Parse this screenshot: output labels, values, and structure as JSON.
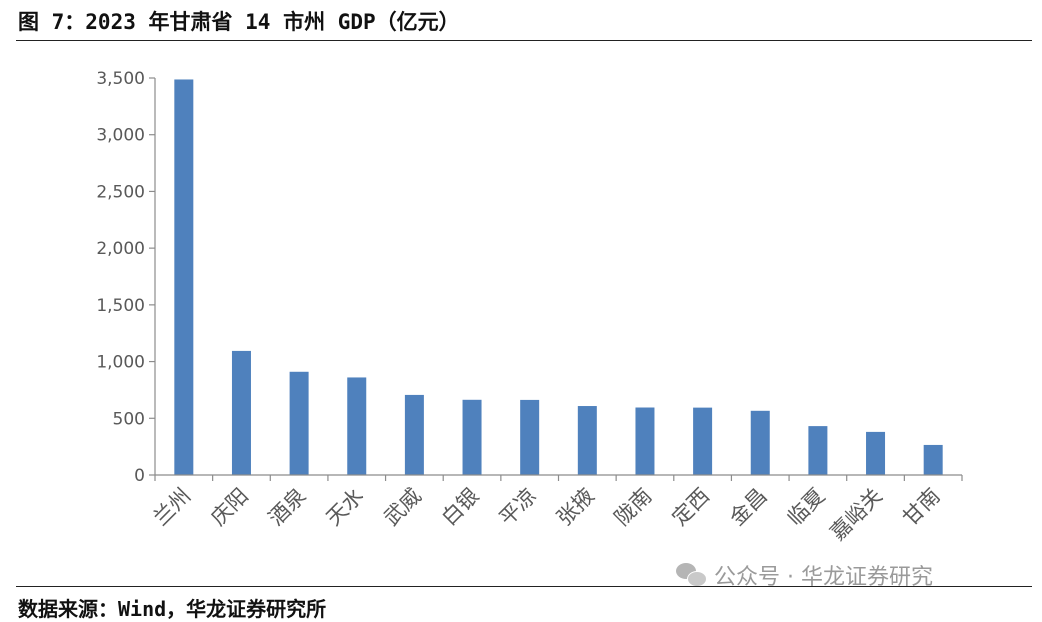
{
  "header": {
    "title": "图 7：2023 年甘肃省 14 市州 GDP（亿元）"
  },
  "footer": {
    "source": "数据来源：Wind，华龙证券研究所"
  },
  "watermark": {
    "text": "公众号 · 华龙证券研究",
    "icon": "wechat-icon"
  },
  "chart_data": {
    "type": "bar",
    "title": "图 7：2023 年甘肃省 14 市州 GDP（亿元）",
    "categories": [
      "兰州",
      "庆阳",
      "酒泉",
      "天水",
      "武威",
      "白银",
      "平凉",
      "张掖",
      "陇南",
      "定西",
      "金昌",
      "临夏",
      "嘉峪关",
      "甘南"
    ],
    "values": [
      3487,
      1094,
      910,
      860,
      706,
      663,
      662,
      608,
      595,
      594,
      566,
      431,
      380,
      265
    ],
    "ylim": [
      0,
      3500
    ],
    "yticks": [
      0,
      500,
      1000,
      1500,
      2000,
      2500,
      3000,
      3500
    ],
    "ytick_labels": [
      "0",
      "500",
      "1,000",
      "1,500",
      "2,000",
      "2,500",
      "3,000",
      "3,500"
    ],
    "bar_color": "#4F81BD",
    "grid": false,
    "legend": "none"
  }
}
